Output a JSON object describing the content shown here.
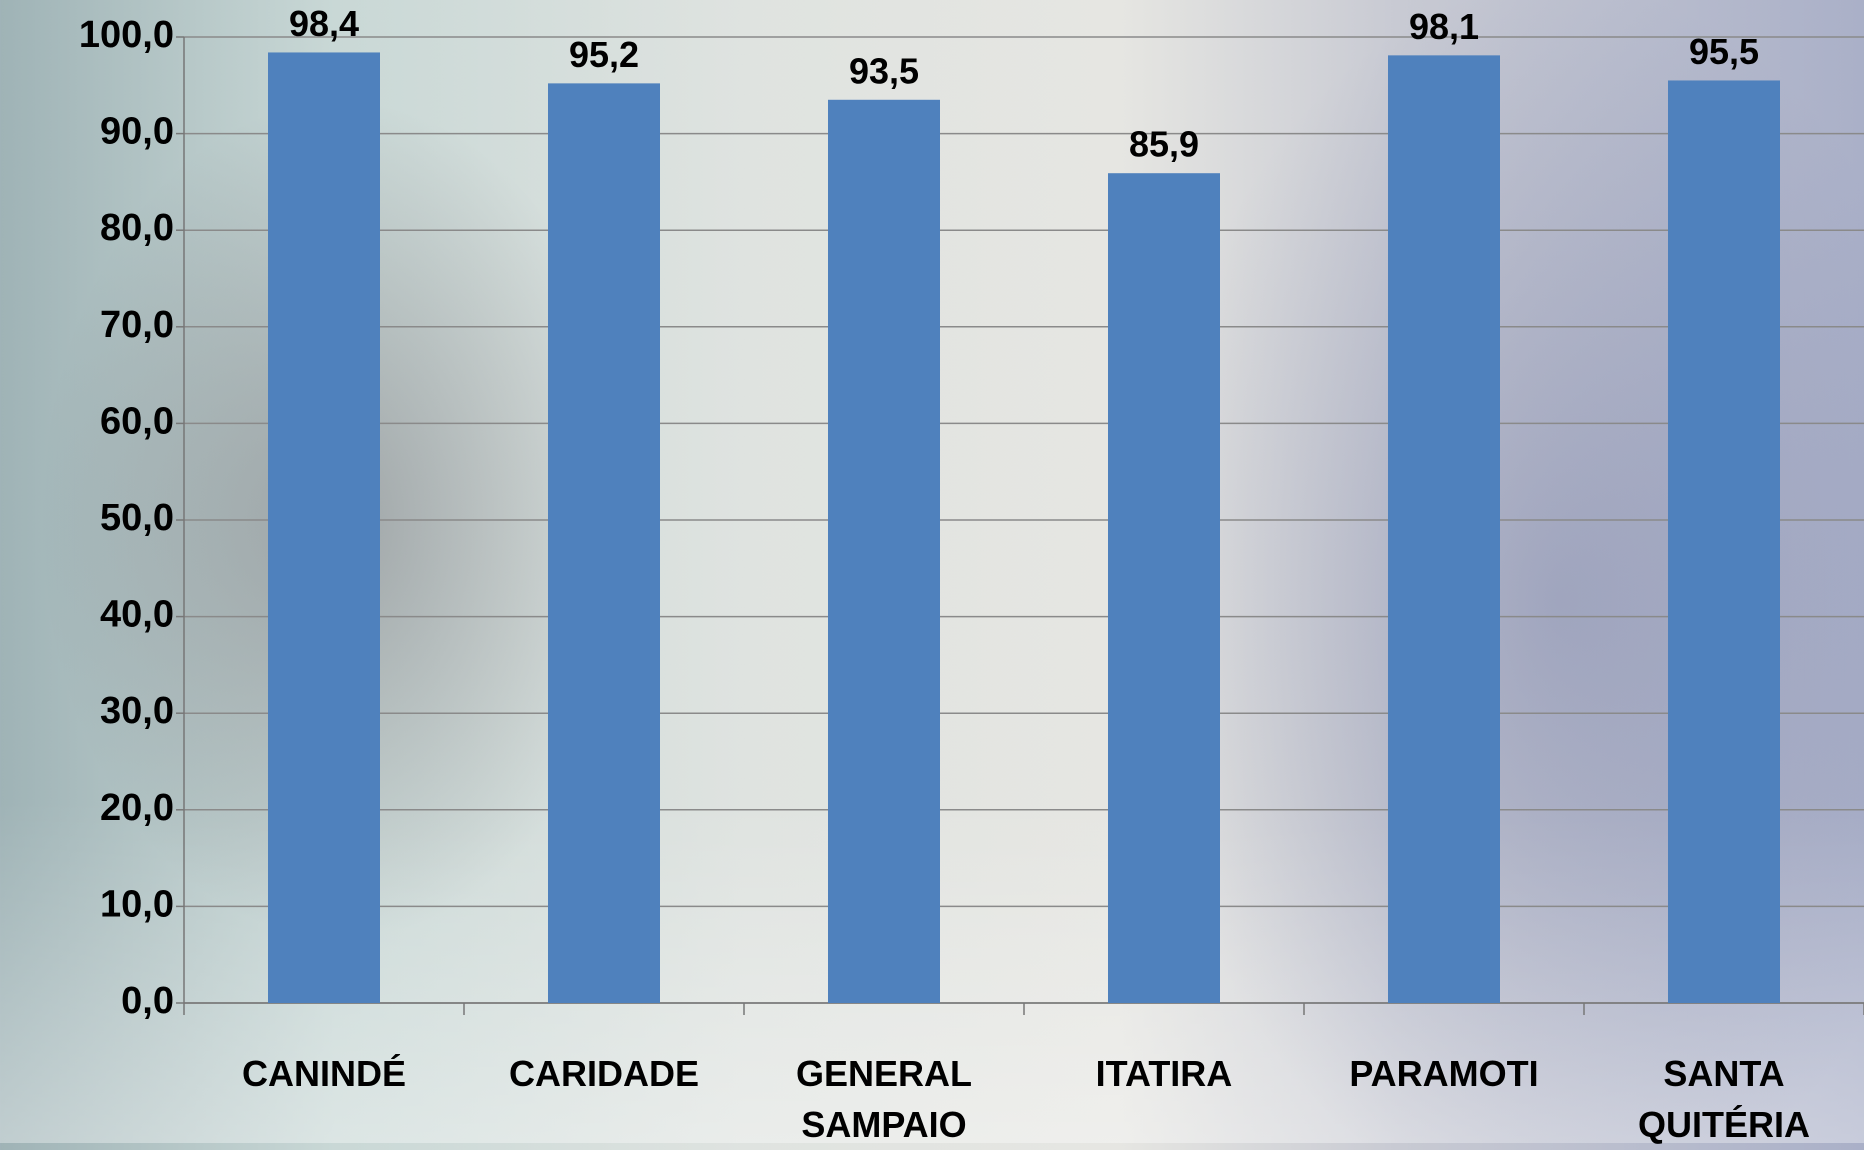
{
  "chart_data": {
    "type": "bar",
    "categories": [
      "CANINDÉ",
      "CARIDADE",
      "GENERAL SAMPAIO",
      "ITATIRA",
      "PARAMOTI",
      "SANTA QUITÉRIA"
    ],
    "values": [
      98.4,
      95.2,
      93.5,
      85.9,
      98.1,
      95.5
    ],
    "value_labels": [
      "98,4",
      "95,2",
      "93,5",
      "85,9",
      "98,1",
      "95,5"
    ],
    "color": "#4f81bd",
    "ylim": [
      0,
      100
    ],
    "yticks": [
      {
        "value": 0,
        "label": "0,0"
      },
      {
        "value": 10,
        "label": "10,0"
      },
      {
        "value": 20,
        "label": "20,0"
      },
      {
        "value": 30,
        "label": "30,0"
      },
      {
        "value": 40,
        "label": "40,0"
      },
      {
        "value": 50,
        "label": "50,0"
      },
      {
        "value": 60,
        "label": "60,0"
      },
      {
        "value": 70,
        "label": "70,0"
      },
      {
        "value": 80,
        "label": "80,0"
      },
      {
        "value": 90,
        "label": "90,0"
      },
      {
        "value": 100,
        "label": "100,0"
      }
    ],
    "grid": true
  }
}
